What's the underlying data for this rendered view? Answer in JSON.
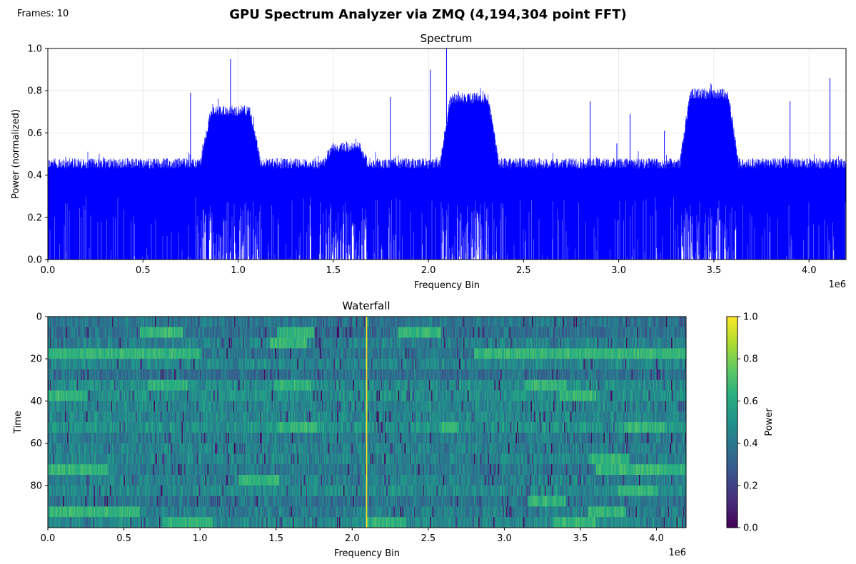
{
  "header": {
    "frames_text": "Frames: 10",
    "title": "GPU Spectrum Analyzer via ZMQ (4,194,304 point FFT)"
  },
  "chart_data": [
    {
      "type": "line",
      "title": "Spectrum",
      "xlabel": "Frequency Bin",
      "ylabel": "Power (normalized)",
      "x_offset_text": "1e6",
      "xlim": [
        0,
        4194304
      ],
      "ylim": [
        0,
        1.0
      ],
      "grid": true,
      "line_color": "#0000ff",
      "xticks": [
        0,
        500000,
        1000000,
        1500000,
        2000000,
        2500000,
        3000000,
        3500000,
        4000000
      ],
      "xtick_labels": [
        "0.0",
        "0.5",
        "1.0",
        "1.5",
        "2.0",
        "2.5",
        "3.0",
        "3.5",
        "4.0"
      ],
      "yticks": [
        0,
        0.2,
        0.4,
        0.6,
        0.8,
        1.0
      ],
      "ytick_labels": [
        "0.0",
        "0.2",
        "0.4",
        "0.6",
        "0.8",
        "1.0"
      ],
      "noise_floor_top": 0.48,
      "bands": [
        {
          "start": 800000,
          "end": 1120000,
          "peak": 0.73
        },
        {
          "start": 1450000,
          "end": 1680000,
          "peak": 0.56
        },
        {
          "start": 2060000,
          "end": 2370000,
          "peak": 0.79
        },
        {
          "start": 3320000,
          "end": 3630000,
          "peak": 0.81
        }
      ],
      "spikes": [
        {
          "x": 750000,
          "y": 0.79
        },
        {
          "x": 960000,
          "y": 0.95
        },
        {
          "x": 1800000,
          "y": 0.77
        },
        {
          "x": 2010000,
          "y": 0.9
        },
        {
          "x": 2095000,
          "y": 1.0
        },
        {
          "x": 2850000,
          "y": 0.75
        },
        {
          "x": 2990000,
          "y": 0.55
        },
        {
          "x": 3060000,
          "y": 0.69
        },
        {
          "x": 3240000,
          "y": 0.61
        },
        {
          "x": 3900000,
          "y": 0.75
        },
        {
          "x": 4110000,
          "y": 0.86
        }
      ]
    },
    {
      "type": "heatmap",
      "title": "Waterfall",
      "xlabel": "Frequency Bin",
      "ylabel": "Time",
      "x_offset_text": "1e6",
      "xlim": [
        0,
        4194304
      ],
      "ylim": [
        0,
        100
      ],
      "rows": 20,
      "colormap": "viridis",
      "xticks": [
        0,
        500000,
        1000000,
        1500000,
        2000000,
        2500000,
        3000000,
        3500000,
        4000000
      ],
      "xtick_labels": [
        "0.0",
        "0.5",
        "1.0",
        "1.5",
        "2.0",
        "2.5",
        "3.0",
        "3.5",
        "4.0"
      ],
      "yticks": [
        0,
        20,
        40,
        60,
        80
      ],
      "ytick_labels": [
        "0",
        "20",
        "40",
        "60",
        "80"
      ],
      "constant_line_x": 2095000,
      "colorbar": {
        "label": "Power",
        "ticks": [
          0,
          0.2,
          0.4,
          0.6,
          0.8,
          1.0
        ],
        "tick_labels": [
          "0.0",
          "0.2",
          "0.4",
          "0.6",
          "0.8",
          "1.0"
        ]
      },
      "hot_segments": [
        {
          "row": 1,
          "start": 600000,
          "end": 880000
        },
        {
          "row": 1,
          "start": 1500000,
          "end": 1750000
        },
        {
          "row": 1,
          "start": 2300000,
          "end": 2580000
        },
        {
          "row": 2,
          "start": 1450000,
          "end": 1700000
        },
        {
          "row": 3,
          "start": 0,
          "end": 1000000
        },
        {
          "row": 3,
          "start": 2800000,
          "end": 4194304
        },
        {
          "row": 6,
          "start": 650000,
          "end": 920000
        },
        {
          "row": 6,
          "start": 1480000,
          "end": 1730000
        },
        {
          "row": 6,
          "start": 3130000,
          "end": 3400000
        },
        {
          "row": 7,
          "start": 0,
          "end": 250000
        },
        {
          "row": 7,
          "start": 3360000,
          "end": 3600000
        },
        {
          "row": 10,
          "start": 1500000,
          "end": 1760000
        },
        {
          "row": 10,
          "start": 2580000,
          "end": 2700000
        },
        {
          "row": 10,
          "start": 3780000,
          "end": 4050000
        },
        {
          "row": 13,
          "start": 3550000,
          "end": 3820000
        },
        {
          "row": 14,
          "start": 0,
          "end": 400000
        },
        {
          "row": 14,
          "start": 3600000,
          "end": 4194304
        },
        {
          "row": 15,
          "start": 1250000,
          "end": 1520000
        },
        {
          "row": 16,
          "start": 3750000,
          "end": 4000000
        },
        {
          "row": 17,
          "start": 3150000,
          "end": 3400000
        },
        {
          "row": 18,
          "start": 0,
          "end": 600000
        },
        {
          "row": 18,
          "start": 3550000,
          "end": 3800000
        },
        {
          "row": 19,
          "start": 750000,
          "end": 1080000
        },
        {
          "row": 19,
          "start": 2090000,
          "end": 2350000
        },
        {
          "row": 19,
          "start": 3320000,
          "end": 3600000
        }
      ]
    }
  ]
}
